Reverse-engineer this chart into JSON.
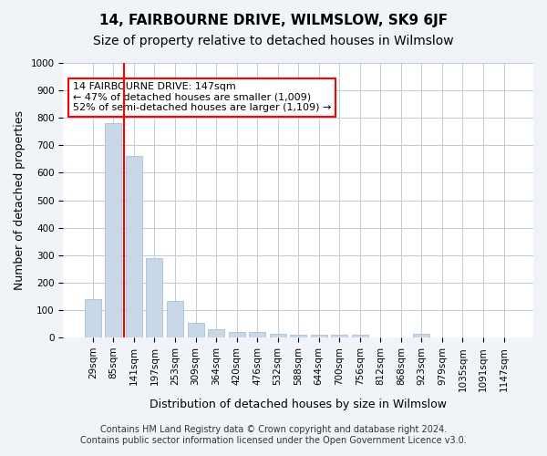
{
  "title": "14, FAIRBOURNE DRIVE, WILMSLOW, SK9 6JF",
  "subtitle": "Size of property relative to detached houses in Wilmslow",
  "xlabel": "Distribution of detached houses by size in Wilmslow",
  "ylabel": "Number of detached properties",
  "bar_color": "#c8d8e8",
  "bar_edge_color": "#a0b8cc",
  "categories": [
    "29sqm",
    "85sqm",
    "141sqm",
    "197sqm",
    "253sqm",
    "309sqm",
    "364sqm",
    "420sqm",
    "476sqm",
    "532sqm",
    "588sqm",
    "644sqm",
    "700sqm",
    "756sqm",
    "812sqm",
    "868sqm",
    "923sqm",
    "979sqm",
    "1035sqm",
    "1091sqm",
    "1147sqm"
  ],
  "values": [
    140,
    780,
    660,
    290,
    135,
    55,
    30,
    20,
    20,
    15,
    10,
    10,
    10,
    10,
    0,
    0,
    15,
    0,
    0,
    0,
    0
  ],
  "ylim": [
    0,
    1000
  ],
  "yticks": [
    0,
    100,
    200,
    300,
    400,
    500,
    600,
    700,
    800,
    900,
    1000
  ],
  "property_bar_index": 2,
  "annotation_text": "14 FAIRBOURNE DRIVE: 147sqm\n← 47% of detached houses are smaller (1,009)\n52% of semi-detached houses are larger (1,109) →",
  "annotation_box_color": "white",
  "annotation_box_edge_color": "red",
  "vline_x": 2,
  "vline_color": "red",
  "footer_line1": "Contains HM Land Registry data © Crown copyright and database right 2024.",
  "footer_line2": "Contains public sector information licensed under the Open Government Licence v3.0.",
  "bg_color": "#f0f4f8",
  "plot_bg_color": "white",
  "grid_color": "#c0ccd8",
  "title_fontsize": 11,
  "subtitle_fontsize": 10,
  "xlabel_fontsize": 9,
  "ylabel_fontsize": 9,
  "tick_fontsize": 7.5,
  "annotation_fontsize": 8,
  "footer_fontsize": 7
}
